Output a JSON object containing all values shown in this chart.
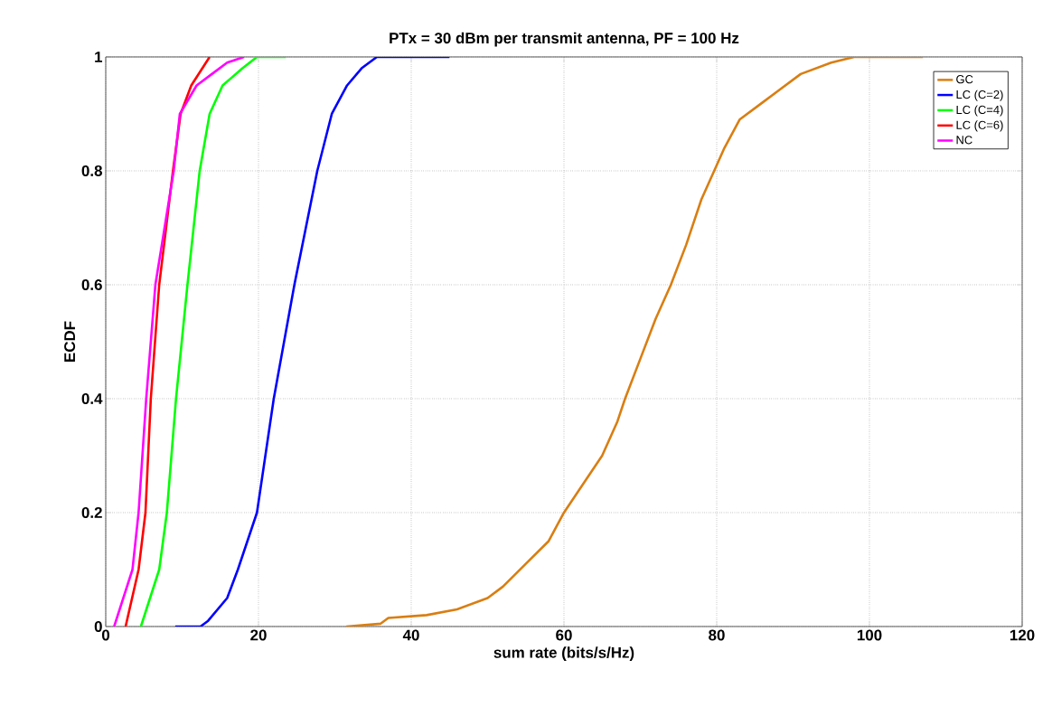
{
  "chart_data": {
    "type": "line",
    "title": "PTx = 30 dBm per transmit antenna, PF = 100 Hz",
    "xlabel": "sum rate (bits/s/Hz)",
    "ylabel": "ECDF",
    "xlim": [
      0,
      120
    ],
    "xticks": [
      0,
      20,
      40,
      60,
      80,
      100,
      120
    ],
    "ylim": [
      0,
      1
    ],
    "yticks": [
      0,
      0.2,
      0.4,
      0.6,
      0.8,
      1
    ],
    "grid": true,
    "legend": "top right",
    "line_style": "solid",
    "marker": "none",
    "series": [
      {
        "name": "GC",
        "color": "#d97e12",
        "x": [
          31.5,
          36,
          37,
          42,
          46,
          50,
          52,
          55,
          58,
          60,
          62,
          65,
          67,
          68,
          70,
          72,
          74,
          76,
          78,
          80,
          81,
          83,
          86,
          88,
          91,
          95,
          98,
          107
        ],
        "values": [
          0,
          0.005,
          0.015,
          0.02,
          0.03,
          0.05,
          0.07,
          0.11,
          0.15,
          0.2,
          0.24,
          0.3,
          0.36,
          0.4,
          0.47,
          0.54,
          0.6,
          0.67,
          0.75,
          0.81,
          0.84,
          0.89,
          0.92,
          0.94,
          0.97,
          0.99,
          1,
          1
        ]
      },
      {
        "name": "LC (C=2)",
        "color": "#0000ff",
        "x": [
          9.1,
          12.4,
          13.4,
          15.9,
          17.3,
          19.8,
          22,
          24.7,
          27.7,
          29.6,
          31.6,
          33.5,
          35.5,
          45
        ],
        "values": [
          0,
          0,
          0.01,
          0.05,
          0.1,
          0.2,
          0.4,
          0.6,
          0.8,
          0.9,
          0.95,
          0.98,
          1,
          1
        ]
      },
      {
        "name": "LC (C=4)",
        "color": "#00ff00",
        "x": [
          4.6,
          7.0,
          8.0,
          9.2,
          10.7,
          12.3,
          13.6,
          15.3,
          17.9,
          19.8,
          23.6
        ],
        "values": [
          0,
          0.1,
          0.2,
          0.4,
          0.6,
          0.8,
          0.9,
          0.95,
          0.98,
          1,
          1
        ]
      },
      {
        "name": "LC (C=6)",
        "color": "#ff0000",
        "x": [
          2.6,
          4.3,
          5.2,
          5.9,
          7.0,
          8.8,
          9.8,
          11.2,
          13.6
        ],
        "values": [
          0,
          0.1,
          0.2,
          0.4,
          0.6,
          0.8,
          0.9,
          0.95,
          1
        ]
      },
      {
        "name": "NC",
        "color": "#ff00ff",
        "x": [
          1.1,
          3.5,
          4.3,
          5.3,
          6.5,
          8.9,
          9.7,
          11.9,
          13.9,
          15.9,
          18.1
        ],
        "values": [
          0,
          0.1,
          0.2,
          0.4,
          0.6,
          0.8,
          0.9,
          0.95,
          0.97,
          0.99,
          1
        ]
      }
    ]
  }
}
